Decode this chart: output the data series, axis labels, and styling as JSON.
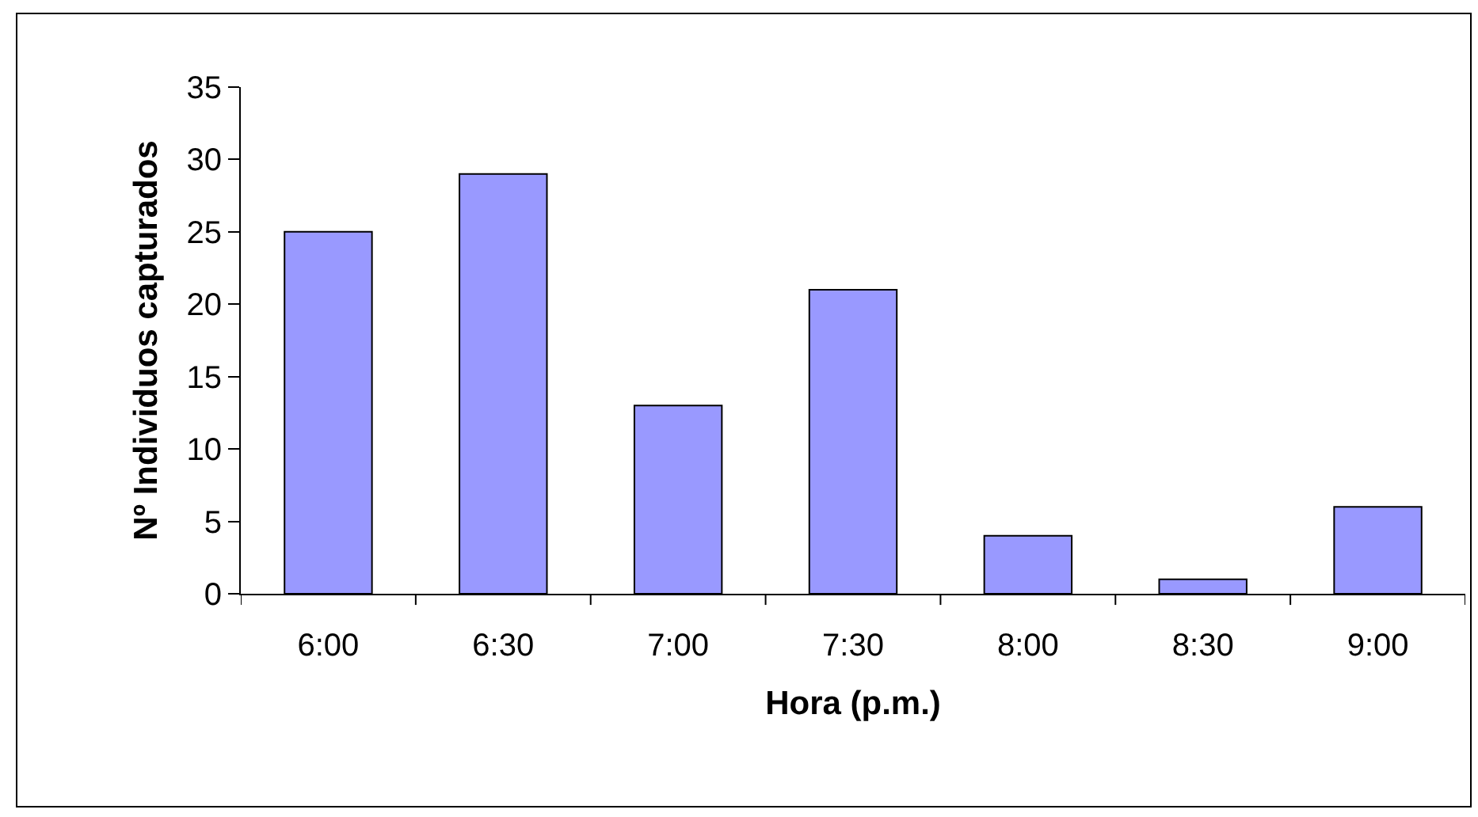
{
  "chart_data": {
    "type": "bar",
    "xlabel": "Hora (p.m.)",
    "ylabel": "Nº Individuos capturados",
    "categories": [
      "6:00",
      "6:30",
      "7:00",
      "7:30",
      "8:00",
      "8:30",
      "9:00"
    ],
    "values": [
      25,
      29,
      13,
      21,
      4,
      1,
      6
    ],
    "color": "#9999ff",
    "ylim": [
      0,
      35
    ],
    "yticks": [
      0,
      5,
      10,
      15,
      20,
      25,
      30,
      35
    ],
    "grid": false
  }
}
